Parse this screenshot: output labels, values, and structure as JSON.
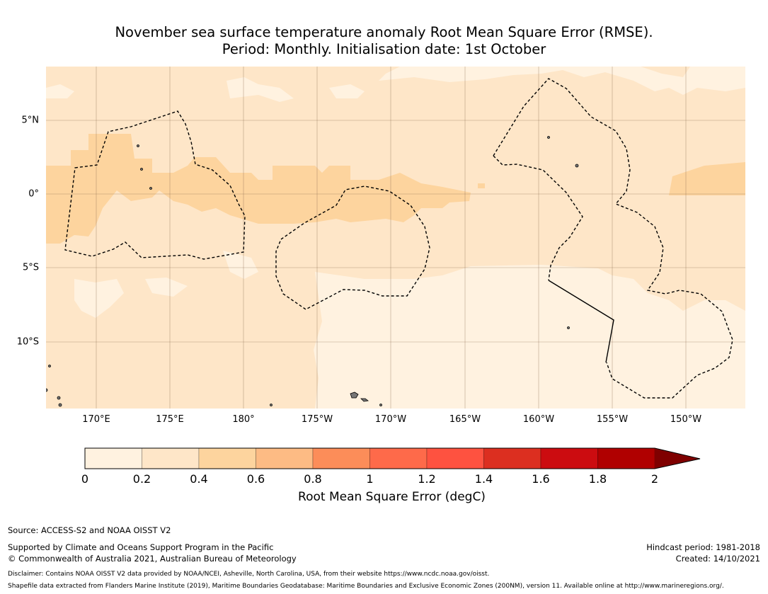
{
  "title": {
    "line1": "November sea surface temperature anomaly Root Mean Square Error (RMSE).",
    "line2": "Period: Monthly. Initialisation date: 1st October"
  },
  "map": {
    "lat_ticks": [
      "5°N",
      "0°",
      "5°S",
      "10°S"
    ],
    "lon_ticks": [
      "170°E",
      "175°E",
      "180°",
      "175°W",
      "170°W",
      "165°W",
      "160°W",
      "155°W",
      "150°W"
    ],
    "extent": {
      "lon_min": 166.6,
      "lon_max": 214.1,
      "lat_min": -14.5,
      "lat_max": 8.7
    }
  },
  "colorbar": {
    "ticks": [
      "0",
      "0.2",
      "0.4",
      "0.6",
      "0.8",
      "1",
      "1.2",
      "1.4",
      "1.6",
      "1.8",
      "2"
    ],
    "colors": [
      "#fff2e0",
      "#fee6c8",
      "#fdd49e",
      "#fdbb84",
      "#fc8d59",
      "#fe6a4a",
      "#fe5240",
      "#dc2f20",
      "#cc0c10",
      "#b00000"
    ],
    "extend_color": "#7f0000",
    "label": "Root Mean Square Error (degC)"
  },
  "footer": {
    "source": "Source: ACCESS-S2 and NOAA OISST V2",
    "supported": "Supported by Climate and Oceans Support Program in the Pacific",
    "copyright": "© Commonwealth of Australia 2021, Australian Bureau of Meteorology",
    "hindcast": "Hindcast period: 1981-2018",
    "created": "Created: 14/10/2021",
    "disclaimer": "Disclaimer: Contains NOAA OISST V2 data provided by NOAA/NCEI, Asheville, North Carolina, USA, from their website https://www.ncdc.noaa.gov/oisst.",
    "shapefile": "Shapefile data extracted from Flanders Marine Institute (2019), Maritime Boundaries Geodatabase: Maritime Boundaries and Exclusive Economic Zones (200NM), version 11. Available online at http://www.marineregions.org/."
  }
}
